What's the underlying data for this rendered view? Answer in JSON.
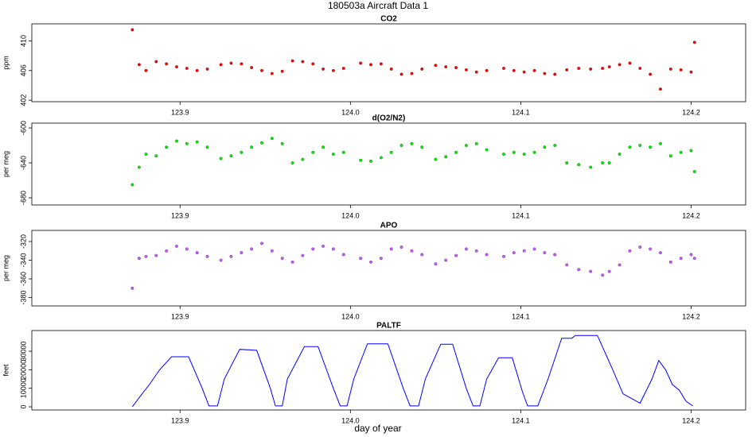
{
  "title": "180503a   Aircraft Data 1",
  "xlabel": "day of year",
  "chart_data": [
    {
      "type": "scatter",
      "title": "CO2",
      "ylabel": "ppm",
      "color": "#ff0000",
      "xlim": [
        123.813,
        124.232
      ],
      "xticks": [
        123.9,
        {
          "value": 124,
          "label": "124.0"
        },
        124.1,
        124.2
      ],
      "ylim": [
        401.8,
        412.3
      ],
      "yticks": [
        402,
        406,
        410
      ],
      "x": [
        123.872,
        123.876,
        123.88,
        123.886,
        123.892,
        123.898,
        123.904,
        123.91,
        123.916,
        123.924,
        123.93,
        123.936,
        123.942,
        123.948,
        123.954,
        123.96,
        123.966,
        123.972,
        123.978,
        123.984,
        123.99,
        123.996,
        124.006,
        124.012,
        124.018,
        124.024,
        124.03,
        124.036,
        124.042,
        124.05,
        124.056,
        124.062,
        124.068,
        124.074,
        124.08,
        124.09,
        124.096,
        124.102,
        124.108,
        124.114,
        124.12,
        124.127,
        124.134,
        124.141,
        124.148,
        124.152,
        124.158,
        124.164,
        124.17,
        124.176,
        124.182,
        124.188,
        124.194,
        124.2,
        124.202
      ],
      "values": [
        411.5,
        406.8,
        406.0,
        407.2,
        406.9,
        406.5,
        406.3,
        406.0,
        406.2,
        406.8,
        407.0,
        406.9,
        406.4,
        406.0,
        405.6,
        405.9,
        407.3,
        407.2,
        406.9,
        406.2,
        406.0,
        406.3,
        407.0,
        406.8,
        406.9,
        406.2,
        405.5,
        405.6,
        406.2,
        406.7,
        406.5,
        406.4,
        406.1,
        405.8,
        406.0,
        406.3,
        406.0,
        405.8,
        406.0,
        405.6,
        405.5,
        406.1,
        406.3,
        406.2,
        406.3,
        406.5,
        406.8,
        407.0,
        406.3,
        405.5,
        403.5,
        406.2,
        406.1,
        405.8,
        409.8
      ]
    },
    {
      "type": "scatter",
      "title": "d(O2/N2)",
      "ylabel": "per meg",
      "color": "#00ee00",
      "xlim": [
        123.813,
        124.232
      ],
      "xticks": [
        123.9,
        {
          "value": 124,
          "label": "124.0"
        },
        124.1,
        124.2
      ],
      "ylim": [
        -688.2,
        -594.5
      ],
      "yticks": [
        -600,
        -640,
        -680
      ],
      "x": [
        123.872,
        123.876,
        123.88,
        123.886,
        123.892,
        123.898,
        123.904,
        123.91,
        123.916,
        123.924,
        123.93,
        123.936,
        123.942,
        123.948,
        123.954,
        123.96,
        123.966,
        123.972,
        123.978,
        123.984,
        123.99,
        123.996,
        124.006,
        124.012,
        124.018,
        124.024,
        124.03,
        124.036,
        124.042,
        124.05,
        124.056,
        124.062,
        124.068,
        124.074,
        124.08,
        124.09,
        124.096,
        124.102,
        124.108,
        124.114,
        124.12,
        124.127,
        124.134,
        124.141,
        124.148,
        124.152,
        124.158,
        124.164,
        124.17,
        124.176,
        124.182,
        124.188,
        124.194,
        124.2,
        124.202
      ],
      "values": [
        -665,
        -645,
        -630,
        -632,
        -622,
        -615,
        -618,
        -616,
        -622,
        -635,
        -632,
        -628,
        -622,
        -617,
        -612,
        -618,
        -640,
        -636,
        -628,
        -622,
        -630,
        -628,
        -637,
        -638,
        -634,
        -628,
        -620,
        -618,
        -622,
        -636,
        -633,
        -628,
        -620,
        -618,
        -625,
        -630,
        -628,
        -630,
        -628,
        -622,
        -620,
        -640,
        -642,
        -645,
        -640,
        -640,
        -630,
        -622,
        -620,
        -622,
        -618,
        -632,
        -628,
        -626,
        -650
      ]
    },
    {
      "type": "scatter",
      "title": "APO",
      "ylabel": "per meg",
      "color": "#cc55ff",
      "xlim": [
        123.813,
        124.232
      ],
      "xticks": [
        123.9,
        {
          "value": 124,
          "label": "124.0"
        },
        124.1,
        124.2
      ],
      "ylim": [
        -388.9,
        -308.1
      ],
      "yticks": [
        -320,
        -340,
        -360,
        -380
      ],
      "x": [
        123.872,
        123.876,
        123.88,
        123.886,
        123.892,
        123.898,
        123.904,
        123.91,
        123.916,
        123.924,
        123.93,
        123.936,
        123.942,
        123.948,
        123.954,
        123.96,
        123.966,
        123.972,
        123.978,
        123.984,
        123.99,
        123.996,
        124.006,
        124.012,
        124.018,
        124.024,
        124.03,
        124.036,
        124.042,
        124.05,
        124.056,
        124.062,
        124.068,
        124.074,
        124.08,
        124.09,
        124.096,
        124.102,
        124.108,
        124.114,
        124.12,
        124.127,
        124.134,
        124.141,
        124.148,
        124.152,
        124.158,
        124.164,
        124.17,
        124.176,
        124.182,
        124.188,
        124.194,
        124.2,
        124.202
      ],
      "values": [
        -370,
        -338,
        -336,
        -335,
        -330,
        -325,
        -328,
        -332,
        -336,
        -340,
        -336,
        -332,
        -328,
        -322,
        -330,
        -338,
        -342,
        -335,
        -328,
        -325,
        -328,
        -334,
        -338,
        -342,
        -338,
        -328,
        -326,
        -330,
        -334,
        -344,
        -340,
        -335,
        -328,
        -330,
        -334,
        -336,
        -332,
        -330,
        -328,
        -332,
        -334,
        -345,
        -350,
        -352,
        -356,
        -352,
        -345,
        -330,
        -326,
        -328,
        -332,
        -342,
        -338,
        -334,
        -338
      ]
    },
    {
      "type": "line",
      "title": "PALTF",
      "ylabel": "feet",
      "color": "#0000ff",
      "xlim": [
        123.813,
        124.232
      ],
      "xticks": [
        123.9,
        {
          "value": 124,
          "label": "124.0"
        },
        124.1,
        124.2
      ],
      "ylim": [
        -1700,
        41160
      ],
      "yticks": [
        0,
        10000,
        20000,
        30000
      ],
      "x": [
        123.872,
        123.876,
        123.882,
        123.888,
        123.895,
        123.905,
        123.913,
        123.917,
        123.922,
        123.926,
        123.935,
        123.945,
        123.953,
        123.956,
        123.96,
        123.963,
        123.973,
        123.981,
        123.99,
        123.994,
        123.998,
        124.002,
        124.01,
        124.022,
        124.031,
        124.035,
        124.04,
        124.044,
        124.053,
        124.06,
        124.068,
        124.072,
        124.076,
        124.08,
        124.087,
        124.095,
        124.101,
        124.104,
        124.11,
        124.116,
        124.124,
        124.13,
        124.132,
        124.145,
        124.154,
        124.16,
        124.17,
        124.177,
        124.181,
        124.185,
        124.189,
        124.193,
        124.197,
        124.201
      ],
      "values": [
        0,
        5000,
        12000,
        20000,
        27000,
        27000,
        10000,
        500,
        500,
        15000,
        31000,
        30500,
        10000,
        500,
        500,
        15000,
        32500,
        32500,
        10000,
        500,
        500,
        15000,
        34000,
        34000,
        10000,
        500,
        500,
        15000,
        33800,
        33800,
        10000,
        500,
        500,
        15000,
        26500,
        26500,
        8000,
        500,
        500,
        15000,
        37000,
        37000,
        38500,
        38500,
        20000,
        7000,
        2000,
        15000,
        25000,
        20000,
        12000,
        9000,
        3000,
        500
      ]
    }
  ]
}
